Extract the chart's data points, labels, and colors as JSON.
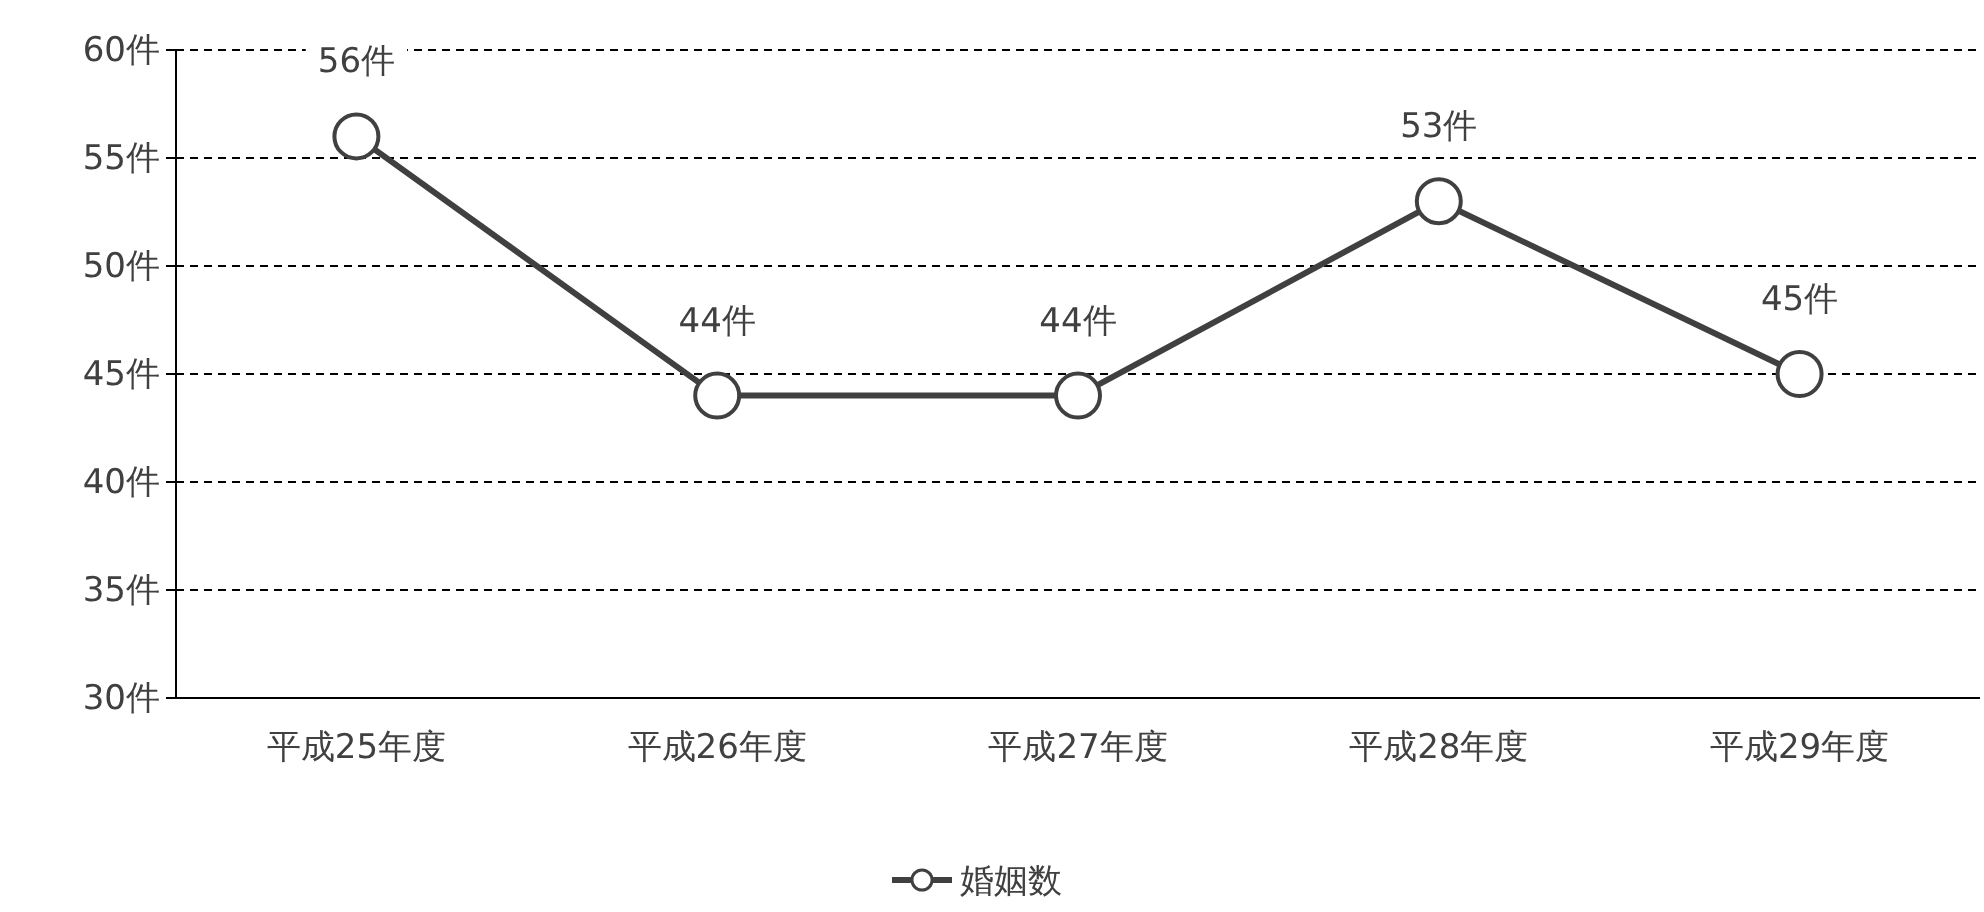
{
  "chart_data": {
    "type": "line",
    "categories": [
      "平成25年度",
      "平成26年度",
      "平成27年度",
      "平成28年度",
      "平成29年度"
    ],
    "series": [
      {
        "name": "婚姻数",
        "color": "#404040",
        "values": [
          56,
          44,
          44,
          53,
          45
        ],
        "value_labels": [
          "56件",
          "44件",
          "44件",
          "53件",
          "45件"
        ]
      }
    ],
    "ylim": [
      30,
      60
    ],
    "yticks": [
      {
        "value": 30,
        "label": "30件"
      },
      {
        "value": 35,
        "label": "35件"
      },
      {
        "value": 40,
        "label": "40件"
      },
      {
        "value": 45,
        "label": "45件"
      },
      {
        "value": 50,
        "label": "50件"
      },
      {
        "value": 55,
        "label": "55件"
      },
      {
        "value": 60,
        "label": "60件"
      }
    ],
    "grid": "y",
    "legend": "bottom",
    "marker": "circle",
    "line_style": "solid"
  }
}
